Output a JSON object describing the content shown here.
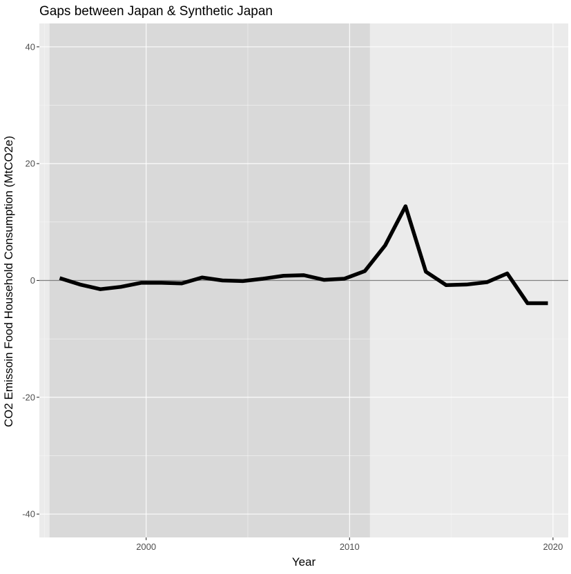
{
  "chart_data": {
    "type": "line",
    "title": "Gaps between Japan & Synthetic Japan",
    "xlabel": "Year",
    "ylabel": "CO2 Emissoin Food Household Consumption (MtCO2e)",
    "xlim": [
      1994.75,
      2020.75
    ],
    "ylim": [
      -44,
      44
    ],
    "x_ticks": [
      2000,
      2010,
      2020
    ],
    "y_ticks": [
      -40,
      -20,
      0,
      20,
      40
    ],
    "grid": true,
    "reference_line_y": 0,
    "shaded_period": [
      1995.25,
      2011
    ],
    "series": [
      {
        "x": [
          1995.75,
          1996.75,
          1997.75,
          1998.75,
          1999.75,
          2000.75,
          2001.75,
          2002.75,
          2003.75,
          2004.75,
          2005.75,
          2006.75,
          2007.75,
          2008.75,
          2009.75,
          2010.75,
          2011.75,
          2012.75,
          2013.75,
          2014.75,
          2015.75,
          2016.75,
          2017.75,
          2018.75,
          2019.75
        ],
        "values": [
          0.4,
          -0.7,
          -1.5,
          -1.1,
          -0.4,
          -0.4,
          -0.5,
          0.5,
          0.0,
          -0.1,
          0.3,
          0.8,
          0.9,
          0.1,
          0.3,
          1.6,
          6.0,
          12.7,
          1.5,
          -0.8,
          -0.7,
          -0.3,
          1.2,
          -3.9,
          -3.9
        ]
      }
    ],
    "colors": {
      "panel_background": "#ebebeb",
      "shaded_period": "#d9d9d9",
      "grid_major": "#ffffff",
      "grid_minor": "#f5f5f5",
      "line": "#000000",
      "zero_line": "#7f7f7f",
      "tick_text": "#4d4d4d",
      "label_text": "#000000"
    }
  }
}
